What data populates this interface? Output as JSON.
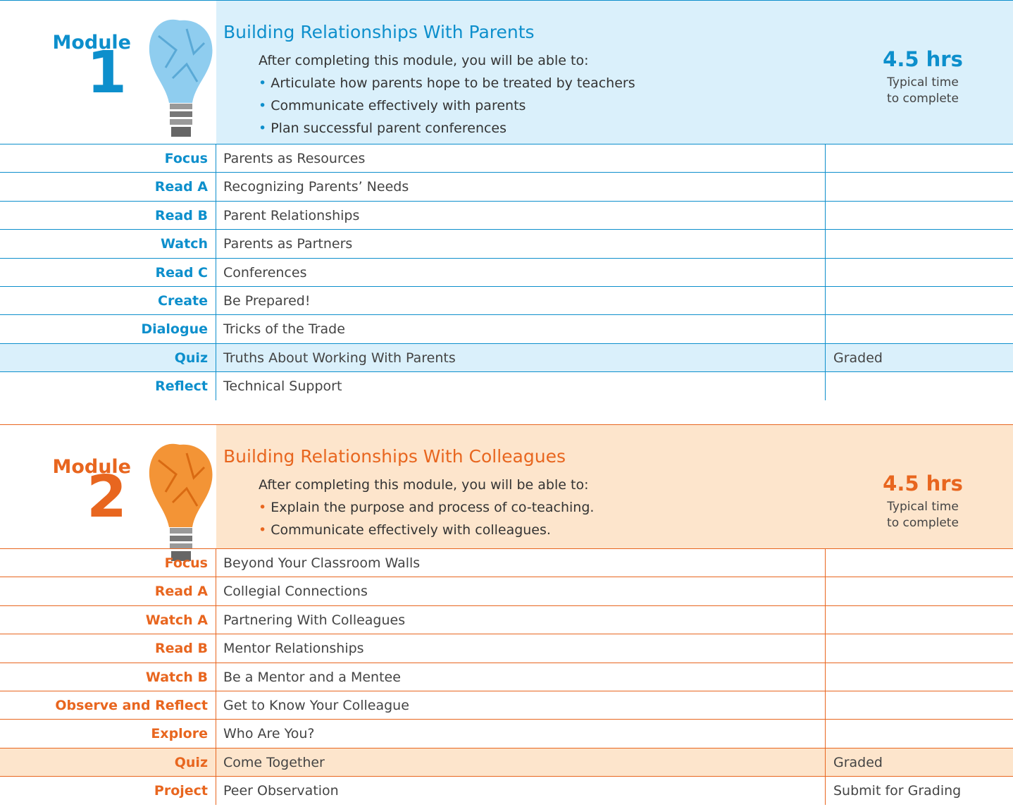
{
  "modules": [
    {
      "label": "Module",
      "number": "1",
      "title": "Building Relationships With Parents",
      "intro": "After completing this module, you will be able to:",
      "objectives": [
        "Articulate how parents hope to be treated by teachers",
        "Communicate effectively with parents",
        "Plan successful parent conferences"
      ],
      "time": "4.5 hrs",
      "time_label": [
        "Typical time",
        "to complete"
      ],
      "rows": [
        {
          "type": "Focus",
          "title": "Parents as Resources"
        },
        {
          "type": "Read A",
          "title": "Recognizing Parents’ Needs"
        },
        {
          "type": "Read B",
          "title": "Parent Relationships"
        },
        {
          "type": "Watch",
          "title": "Parents as Partners"
        },
        {
          "type": "Read C",
          "title": "Conferences"
        },
        {
          "type": "Create",
          "title": "Be Prepared!"
        },
        {
          "type": "Dialogue",
          "title": "Tricks of the Trade"
        },
        {
          "type": "Quiz",
          "title": "Truths About Working With Parents",
          "status": "Graded"
        },
        {
          "type": "Reflect",
          "title": "Technical Support"
        }
      ]
    },
    {
      "label": "Module",
      "number": "2",
      "title": "Building Relationships With Colleagues",
      "intro": "After completing this module, you will be able to:",
      "objectives": [
        "Explain the purpose and process of co-teaching.",
        "Communicate effectively with colleagues."
      ],
      "time": "4.5 hrs",
      "time_label": [
        "Typical time",
        "to complete"
      ],
      "rows": [
        {
          "type": "Focus",
          "title": "Beyond Your Classroom Walls"
        },
        {
          "type": "Read A",
          "title": "Collegial Connections"
        },
        {
          "type": "Watch A",
          "title": "Partnering With Colleagues"
        },
        {
          "type": "Read B",
          "title": "Mentor Relationships"
        },
        {
          "type": "Watch B",
          "title": "Be a Mentor and a Mentee"
        },
        {
          "type": "Observe and Reflect",
          "title": "Get to Know Your Colleague"
        },
        {
          "type": "Explore",
          "title": "Who Are You?"
        },
        {
          "type": "Quiz",
          "title": "Come Together",
          "status": "Graded"
        },
        {
          "type": "Project",
          "title": "Peer Observation",
          "status": "Submit for Grading"
        }
      ]
    }
  ]
}
